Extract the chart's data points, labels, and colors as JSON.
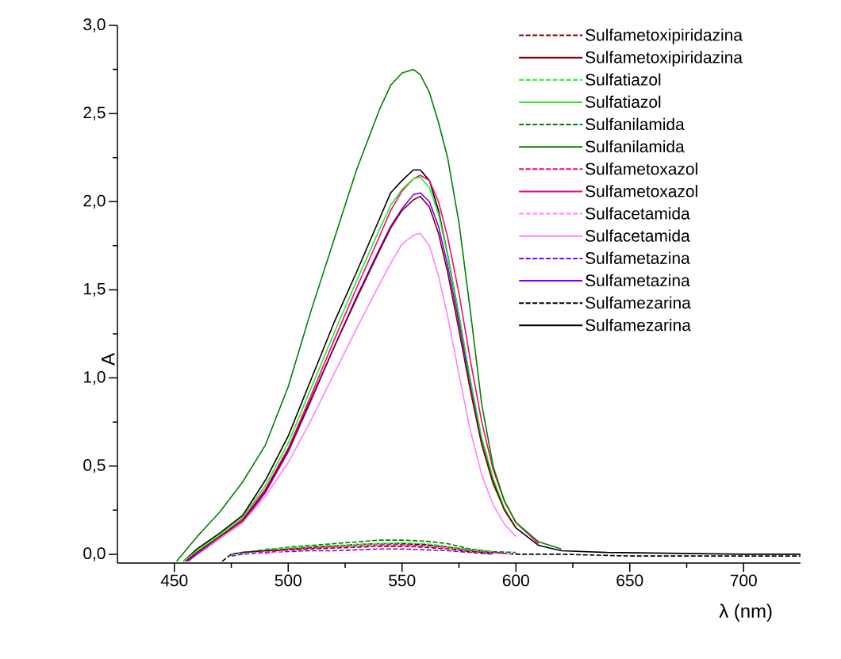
{
  "chart_data": {
    "type": "line",
    "xlabel": "λ (nm)",
    "ylabel": "A",
    "xlim": [
      425,
      725
    ],
    "ylim": [
      -0.05,
      3.0
    ],
    "xticks": [
      450,
      500,
      550,
      600,
      650,
      700
    ],
    "yticks": [
      {
        "value": 0,
        "label": "0,0"
      },
      {
        "value": 0.5,
        "label": "0,5"
      },
      {
        "value": 1.0,
        "label": "1,0"
      },
      {
        "value": 1.5,
        "label": "1,5"
      },
      {
        "value": 2.0,
        "label": "2,0"
      },
      {
        "value": 2.5,
        "label": "2,5"
      },
      {
        "value": 3.0,
        "label": "3,0"
      }
    ],
    "legend": "top right",
    "series": [
      {
        "name": "Sulfametoxipiridazina",
        "color": "#800000",
        "line_style": "dashed",
        "x": [
          480,
          490,
          500,
          510,
          520,
          530,
          540,
          550,
          560,
          570,
          580,
          590
        ],
        "values": [
          0.01,
          0.02,
          0.025,
          0.03,
          0.035,
          0.04,
          0.045,
          0.045,
          0.04,
          0.03,
          0.015,
          0.005
        ]
      },
      {
        "name": "Sulfametoxipiridazina",
        "color": "#800000",
        "line_style": "solid",
        "x": [
          455,
          460,
          470,
          480,
          490,
          500,
          510,
          520,
          530,
          540,
          545,
          550,
          555,
          558,
          562,
          566,
          570,
          575,
          580,
          585,
          590,
          595,
          600
        ],
        "values": [
          -0.04,
          0.01,
          0.1,
          0.19,
          0.36,
          0.59,
          0.88,
          1.17,
          1.45,
          1.72,
          1.85,
          1.95,
          2.01,
          2.03,
          1.97,
          1.82,
          1.6,
          1.27,
          0.93,
          0.62,
          0.4,
          0.25,
          0.15
        ]
      },
      {
        "name": "Sulfatiazol",
        "color": "#22ee22",
        "line_style": "dashed",
        "x": [
          490,
          500,
          510,
          520,
          530,
          540,
          550,
          560,
          570,
          580,
          590
        ],
        "values": [
          0.03,
          0.035,
          0.045,
          0.05,
          0.055,
          0.06,
          0.065,
          0.06,
          0.045,
          0.025,
          0.015
        ]
      },
      {
        "name": "Sulfatiazol",
        "color": "#22ee22",
        "line_style": "solid",
        "x": [
          454,
          460,
          470,
          480,
          490,
          500,
          510,
          520,
          530,
          540,
          545,
          550,
          555,
          558,
          562,
          566,
          570,
          575,
          580,
          585,
          590,
          595,
          600
        ],
        "values": [
          -0.04,
          0.02,
          0.11,
          0.21,
          0.39,
          0.63,
          0.94,
          1.25,
          1.55,
          1.84,
          1.98,
          2.07,
          2.13,
          2.14,
          2.08,
          1.93,
          1.7,
          1.36,
          0.99,
          0.66,
          0.43,
          0.26,
          0.15
        ]
      },
      {
        "name": "Sulfanilamida",
        "color": "#008000",
        "line_style": "dashed",
        "x": [
          475,
          480,
          490,
          500,
          510,
          520,
          530,
          540,
          550,
          560,
          570,
          580,
          590,
          600
        ],
        "values": [
          0.0,
          0.01,
          0.025,
          0.04,
          0.05,
          0.06,
          0.07,
          0.08,
          0.08,
          0.075,
          0.06,
          0.03,
          0.015,
          0.01
        ]
      },
      {
        "name": "Sulfanilamida",
        "color": "#008000",
        "line_style": "solid",
        "x": [
          451,
          460,
          470,
          480,
          490,
          500,
          510,
          520,
          530,
          540,
          545,
          550,
          555,
          558,
          562,
          566,
          570,
          575,
          580,
          585,
          590,
          595,
          600,
          610,
          620
        ],
        "values": [
          -0.04,
          0.1,
          0.24,
          0.41,
          0.62,
          0.95,
          1.38,
          1.78,
          2.18,
          2.52,
          2.66,
          2.73,
          2.75,
          2.72,
          2.62,
          2.45,
          2.25,
          1.88,
          1.38,
          0.85,
          0.5,
          0.3,
          0.18,
          0.07,
          0.03
        ]
      },
      {
        "name": "Sulfametoxazol",
        "color": "#ff0080",
        "line_style": "dashed",
        "x": [
          490,
          500,
          510,
          520,
          530,
          540,
          550,
          560,
          570,
          580,
          595
        ],
        "values": [
          0.01,
          0.03,
          0.035,
          0.045,
          0.05,
          0.055,
          0.055,
          0.05,
          0.04,
          0.02,
          0.005
        ]
      },
      {
        "name": "Sulfametoxazol",
        "color": "#ff0080",
        "line_style": "solid",
        "x": [
          455,
          460,
          470,
          480,
          490,
          500,
          510,
          520,
          530,
          540,
          545,
          550,
          555,
          558,
          562,
          566,
          570,
          575,
          580,
          585,
          590,
          595,
          600,
          610
        ],
        "values": [
          -0.04,
          0.01,
          0.1,
          0.2,
          0.37,
          0.6,
          0.9,
          1.21,
          1.51,
          1.8,
          1.95,
          2.06,
          2.13,
          2.15,
          2.12,
          2.0,
          1.8,
          1.48,
          1.1,
          0.75,
          0.48,
          0.3,
          0.18,
          0.06
        ]
      },
      {
        "name": "Sulfacetamida",
        "color": "#ff80ff",
        "line_style": "dashed",
        "x": [
          490,
          500,
          510,
          520,
          530,
          540,
          550,
          560,
          570,
          580,
          598
        ],
        "values": [
          0.0,
          0.025,
          0.035,
          0.04,
          0.045,
          0.05,
          0.05,
          0.045,
          0.035,
          0.02,
          0.0
        ]
      },
      {
        "name": "Sulfacetamida",
        "color": "#ff80ff",
        "line_style": "solid",
        "x": [
          455,
          460,
          470,
          480,
          490,
          500,
          510,
          520,
          530,
          540,
          545,
          550,
          555,
          558,
          562,
          566,
          570,
          575,
          580,
          585,
          590,
          595,
          600
        ],
        "values": [
          -0.04,
          0.01,
          0.09,
          0.18,
          0.33,
          0.52,
          0.76,
          1.02,
          1.28,
          1.53,
          1.65,
          1.76,
          1.81,
          1.82,
          1.75,
          1.58,
          1.35,
          1.02,
          0.7,
          0.45,
          0.28,
          0.17,
          0.1
        ]
      },
      {
        "name": "Sulfametazina",
        "color": "#8000ff",
        "line_style": "dashed",
        "x": [
          475,
          480,
          490,
          500,
          510,
          520,
          530,
          540,
          550,
          560,
          570,
          580,
          590
        ],
        "values": [
          -0.01,
          0.0,
          0.01,
          0.015,
          0.02,
          0.02,
          0.025,
          0.03,
          0.03,
          0.025,
          0.02,
          0.01,
          0.0
        ]
      },
      {
        "name": "Sulfametazina",
        "color": "#8000ff",
        "line_style": "solid",
        "x": [
          456,
          460,
          470,
          480,
          490,
          500,
          510,
          520,
          530,
          540,
          545,
          550,
          555,
          558,
          562,
          566,
          570,
          575,
          580,
          585
        ],
        "values": [
          -0.04,
          0.0,
          0.09,
          0.18,
          0.35,
          0.58,
          0.87,
          1.17,
          1.46,
          1.73,
          1.86,
          1.96,
          2.04,
          2.05,
          2.0,
          1.86,
          1.64,
          1.31,
          0.96,
          0.65
        ]
      },
      {
        "name": "Sulfamezarina",
        "color": "#000000",
        "line_style": "dashed",
        "x": [
          471,
          475,
          480,
          490,
          500,
          510,
          520,
          530,
          540,
          550,
          560,
          570,
          580,
          590,
          600,
          620,
          650,
          700,
          725
        ],
        "values": [
          -0.04,
          0.0,
          0.01,
          0.02,
          0.03,
          0.04,
          0.045,
          0.055,
          0.06,
          0.06,
          0.055,
          0.04,
          0.025,
          0.01,
          0.0,
          0.0,
          -0.01,
          -0.01,
          -0.01
        ]
      },
      {
        "name": "Sulfamezarina",
        "color": "#000000",
        "line_style": "solid",
        "x": [
          454,
          460,
          470,
          480,
          490,
          500,
          510,
          520,
          530,
          540,
          545,
          550,
          555,
          558,
          562,
          566,
          570,
          575,
          580,
          585,
          590,
          595,
          600,
          610,
          620,
          640,
          700,
          725
        ],
        "values": [
          -0.04,
          0.03,
          0.12,
          0.22,
          0.42,
          0.67,
          0.99,
          1.31,
          1.6,
          1.9,
          2.05,
          2.12,
          2.18,
          2.18,
          2.12,
          1.95,
          1.7,
          1.35,
          0.98,
          0.65,
          0.42,
          0.25,
          0.15,
          0.05,
          0.02,
          0.01,
          0.0,
          0.0
        ]
      }
    ]
  }
}
